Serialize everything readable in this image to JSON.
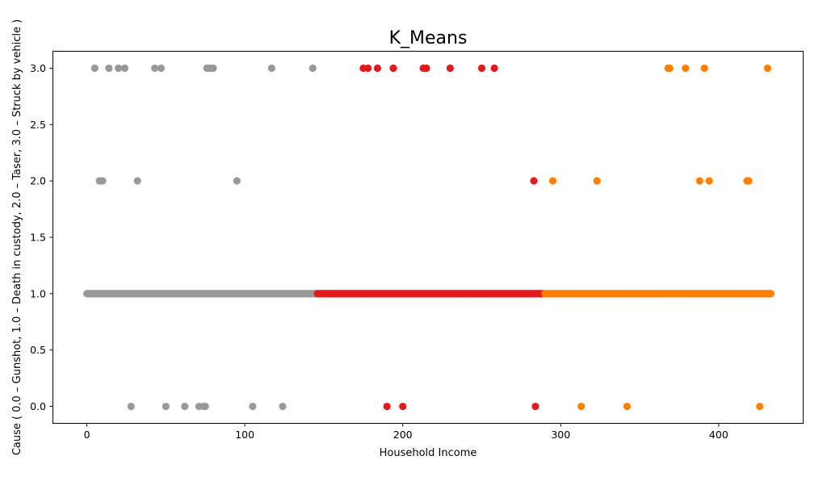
{
  "chart_data": {
    "type": "scatter",
    "title": "K_Means",
    "xlabel": "Household Income",
    "ylabel": "Cause ( 0.0 – Gunshot, 1.0 – Death in custody, 2.0 – Taser, 3.0 – Struck by vehicle )",
    "xlim": [
      -21.5,
      453.5
    ],
    "ylim": [
      -0.15,
      3.15
    ],
    "xticks": [
      0,
      100,
      200,
      300,
      400
    ],
    "xtick_labels": [
      "0",
      "100",
      "200",
      "300",
      "400"
    ],
    "yticks": [
      0.0,
      0.5,
      1.0,
      1.5,
      2.0,
      2.5,
      3.0
    ],
    "ytick_labels": [
      "0.0",
      "0.5",
      "1.0",
      "1.5",
      "2.0",
      "2.5",
      "3.0"
    ],
    "grid": false,
    "legend": "none",
    "series": [
      {
        "color": "#999999",
        "x_range_dense": [
          0,
          146
        ],
        "dense_y": 1.0,
        "points": [
          [
            5,
            3
          ],
          [
            14,
            3
          ],
          [
            20,
            3
          ],
          [
            24,
            3
          ],
          [
            43,
            3
          ],
          [
            47,
            3
          ],
          [
            76,
            3
          ],
          [
            78,
            3
          ],
          [
            80,
            3
          ],
          [
            117,
            3
          ],
          [
            143,
            3
          ],
          [
            8,
            2
          ],
          [
            10,
            2
          ],
          [
            32,
            2
          ],
          [
            95,
            2
          ],
          [
            28,
            0
          ],
          [
            50,
            0
          ],
          [
            62,
            0
          ],
          [
            71,
            0
          ],
          [
            74,
            0
          ],
          [
            75,
            0
          ],
          [
            105,
            0
          ],
          [
            124,
            0
          ]
        ]
      },
      {
        "color": "#e41a1c",
        "x_range_dense": [
          146,
          289
        ],
        "dense_y": 1.0,
        "points": [
          [
            175,
            3
          ],
          [
            178,
            3
          ],
          [
            184,
            3
          ],
          [
            194,
            3
          ],
          [
            213,
            3
          ],
          [
            215,
            3
          ],
          [
            230,
            3
          ],
          [
            250,
            3
          ],
          [
            258,
            3
          ],
          [
            283,
            2
          ],
          [
            190,
            0
          ],
          [
            200,
            0
          ],
          [
            284,
            0
          ]
        ]
      },
      {
        "color": "#ff7f00",
        "x_range_dense": [
          290,
          433
        ],
        "dense_y": 1.0,
        "points": [
          [
            368,
            3
          ],
          [
            369,
            3
          ],
          [
            379,
            3
          ],
          [
            391,
            3
          ],
          [
            431,
            3
          ],
          [
            295,
            2
          ],
          [
            323,
            2
          ],
          [
            388,
            2
          ],
          [
            394,
            2
          ],
          [
            418,
            2
          ],
          [
            419,
            2
          ],
          [
            313,
            0
          ],
          [
            342,
            0
          ],
          [
            426,
            0
          ]
        ]
      }
    ]
  }
}
